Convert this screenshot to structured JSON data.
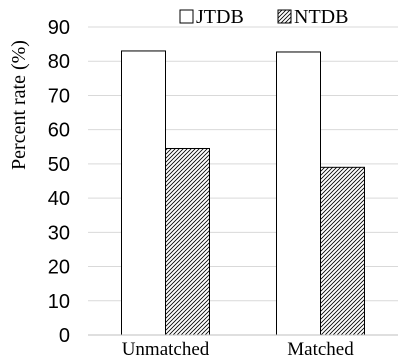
{
  "chart_data": {
    "type": "bar",
    "categories": [
      "Unmatched",
      "Matched"
    ],
    "series": [
      {
        "name": "JTDB",
        "values": [
          83,
          82.7
        ],
        "fill": "#ffffff",
        "pattern": "none"
      },
      {
        "name": "NTDB",
        "values": [
          54.5,
          49
        ],
        "fill": "#ffffff",
        "pattern": "diagonal-hatch"
      }
    ],
    "ylabel": "Percent rate (%)",
    "xlabel": "",
    "title": "",
    "ylim": [
      0,
      90
    ],
    "yticks": [
      0,
      10,
      20,
      30,
      40,
      50,
      60,
      70,
      80,
      90
    ],
    "grid": true,
    "legend_position": "top-right"
  }
}
